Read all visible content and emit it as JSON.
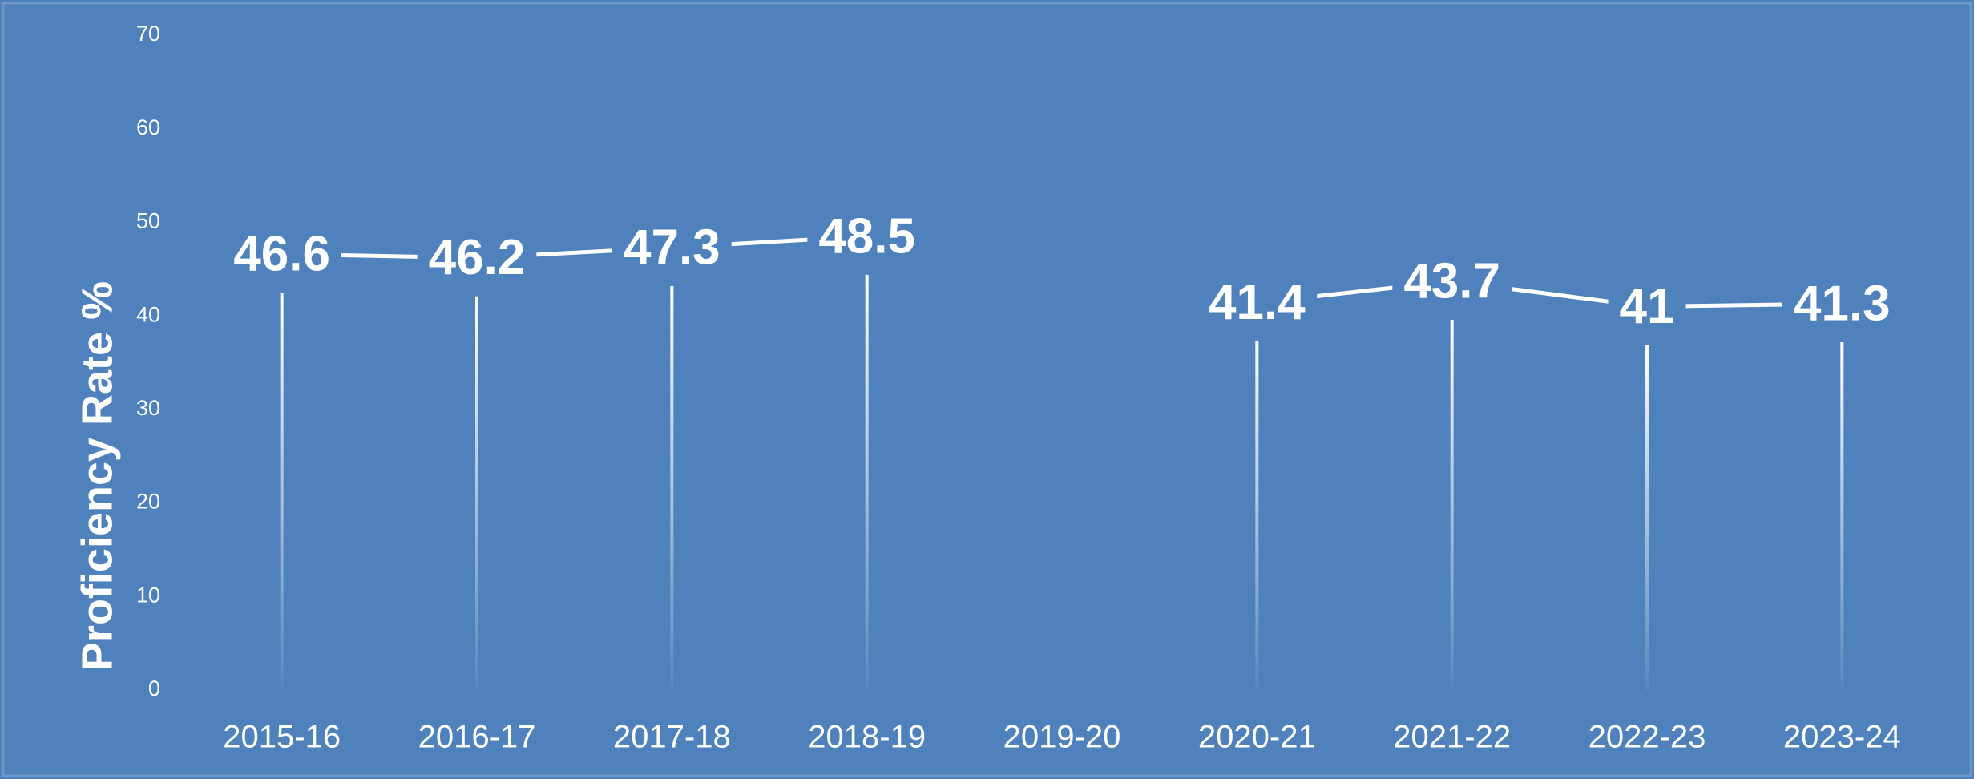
{
  "chart_data": {
    "type": "line",
    "y_label": "Proficiency Rate %",
    "categories": [
      "2015-16",
      "2016-17",
      "2017-18",
      "2018-19",
      "2019-20",
      "2020-21",
      "2021-22",
      "2022-23",
      "2023-24"
    ],
    "series": [
      {
        "name": "Proficiency Rate",
        "color": "#ffffff",
        "values": [
          46.6,
          46.2,
          47.3,
          48.5,
          null,
          41.4,
          43.7,
          41,
          41.3
        ]
      }
    ],
    "ylim": [
      0,
      70
    ],
    "yticks": [
      0,
      10,
      20,
      30,
      40,
      50,
      60,
      70
    ],
    "grid": false
  }
}
